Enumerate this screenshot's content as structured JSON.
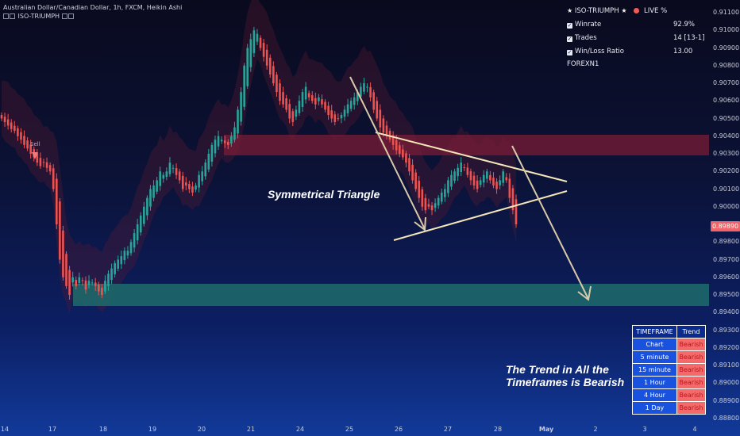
{
  "header": {
    "symbol_line": "Australian Dollar/Canadian Dollar, 1h, FXCM, Heikin Ashi",
    "indicator_line": "ISO-TRIUMPH"
  },
  "stats": {
    "title": "ISO-TRIUMPH",
    "live_label": "LIVE %",
    "rows": [
      {
        "label": "Winrate",
        "value": "92.9%"
      },
      {
        "label": "Trades",
        "value": "14 [13-1]"
      },
      {
        "label": "Win/Loss Ratio",
        "value": "13.00"
      }
    ],
    "footer": "FOREXN1"
  },
  "price_axis": {
    "ticks": [
      "0.91100",
      "0.91000",
      "0.90900",
      "0.90800",
      "0.90700",
      "0.90600",
      "0.90500",
      "0.90400",
      "0.90300",
      "0.90200",
      "0.90100",
      "0.90000",
      "0.89900",
      "0.89800",
      "0.89700",
      "0.89600",
      "0.89500",
      "0.89400",
      "0.89300",
      "0.89200",
      "0.89100",
      "0.89000",
      "0.88900",
      "0.88800"
    ],
    "current_price": "0.89890",
    "current_color": "#f06368"
  },
  "time_axis": {
    "ticks": [
      "14",
      "17",
      "18",
      "19",
      "20",
      "21",
      "24",
      "25",
      "26",
      "27",
      "28",
      "May",
      "2",
      "3",
      "4"
    ]
  },
  "signal": {
    "label": "Sell"
  },
  "annotations": {
    "pattern": "Symmetrical Triangle",
    "trend": [
      "The Trend in All the",
      "Timeframes is Bearish"
    ]
  },
  "trend_table": {
    "headers": [
      "TIMEFRAME",
      "Trend"
    ],
    "rows": [
      {
        "tf": "Chart",
        "trend": "Bearish"
      },
      {
        "tf": "5 minute",
        "trend": "Bearish"
      },
      {
        "tf": "15 minute",
        "trend": "Bearish"
      },
      {
        "tf": "1 Hour",
        "trend": "Bearish"
      },
      {
        "tf": "4 Hour",
        "trend": "Bearish"
      },
      {
        "tf": "1 Day",
        "trend": "Bearish"
      }
    ]
  },
  "colors": {
    "bull": "#26a69a",
    "bear": "#ef5350",
    "resistance_zone": "#7a1c35",
    "support_zone": "#1e6b6b",
    "drawing": "#f5e6b8",
    "arrow": "#d9c9a8"
  },
  "chart_data": {
    "type": "candlestick",
    "closes": [
      0.905,
      0.9048,
      0.9046,
      0.9044,
      0.9043,
      0.904,
      0.9038,
      0.9035,
      0.9033,
      0.903,
      0.9028,
      0.9025,
      0.9023,
      0.9025,
      0.9022,
      0.902,
      0.901,
      0.899,
      0.897,
      0.896,
      0.8955,
      0.895,
      0.896,
      0.8955,
      0.896,
      0.8958,
      0.8953,
      0.8958,
      0.8957,
      0.8955,
      0.8952,
      0.895,
      0.8958,
      0.8962,
      0.8965,
      0.8968,
      0.897,
      0.8972,
      0.8975,
      0.8975,
      0.898,
      0.8985,
      0.899,
      0.8995,
      0.9,
      0.9005,
      0.901,
      0.9012,
      0.9015,
      0.902,
      0.9018,
      0.902,
      0.9025,
      0.9022,
      0.9018,
      0.9015,
      0.901,
      0.9012,
      0.901,
      0.9008,
      0.9012,
      0.9018,
      0.902,
      0.9025,
      0.903,
      0.9035,
      0.9038,
      0.904,
      0.9038,
      0.9036,
      0.9035,
      0.904,
      0.9045,
      0.9055,
      0.9065,
      0.908,
      0.909,
      0.9095,
      0.91,
      0.9098,
      0.909,
      0.9085,
      0.908,
      0.9075,
      0.907,
      0.9065,
      0.906,
      0.9058,
      0.9055,
      0.905,
      0.9048,
      0.9055,
      0.906,
      0.9065,
      0.9068,
      0.9062,
      0.906,
      0.9058,
      0.9062,
      0.9058,
      0.9055,
      0.9052,
      0.905,
      0.9048,
      0.905,
      0.9052,
      0.9055,
      0.9058,
      0.906,
      0.9062,
      0.9065,
      0.9068,
      0.907,
      0.9068,
      0.9062,
      0.9055,
      0.905,
      0.9045,
      0.9042,
      0.904,
      0.9038,
      0.9035,
      0.9032,
      0.903,
      0.9028,
      0.9025,
      0.902,
      0.9015,
      0.901,
      0.9005,
      0.9,
      0.8998,
      0.9,
      0.8998,
      0.9002,
      0.9005,
      0.9008,
      0.901,
      0.9015,
      0.9018,
      0.902,
      0.9022,
      0.9025,
      0.9022,
      0.9018,
      0.9015,
      0.9012,
      0.901,
      0.9015,
      0.9018,
      0.902,
      0.9015,
      0.9012,
      0.901,
      0.9015,
      0.902,
      0.9015,
      0.9005,
      0.8998,
      0.899
    ]
  }
}
